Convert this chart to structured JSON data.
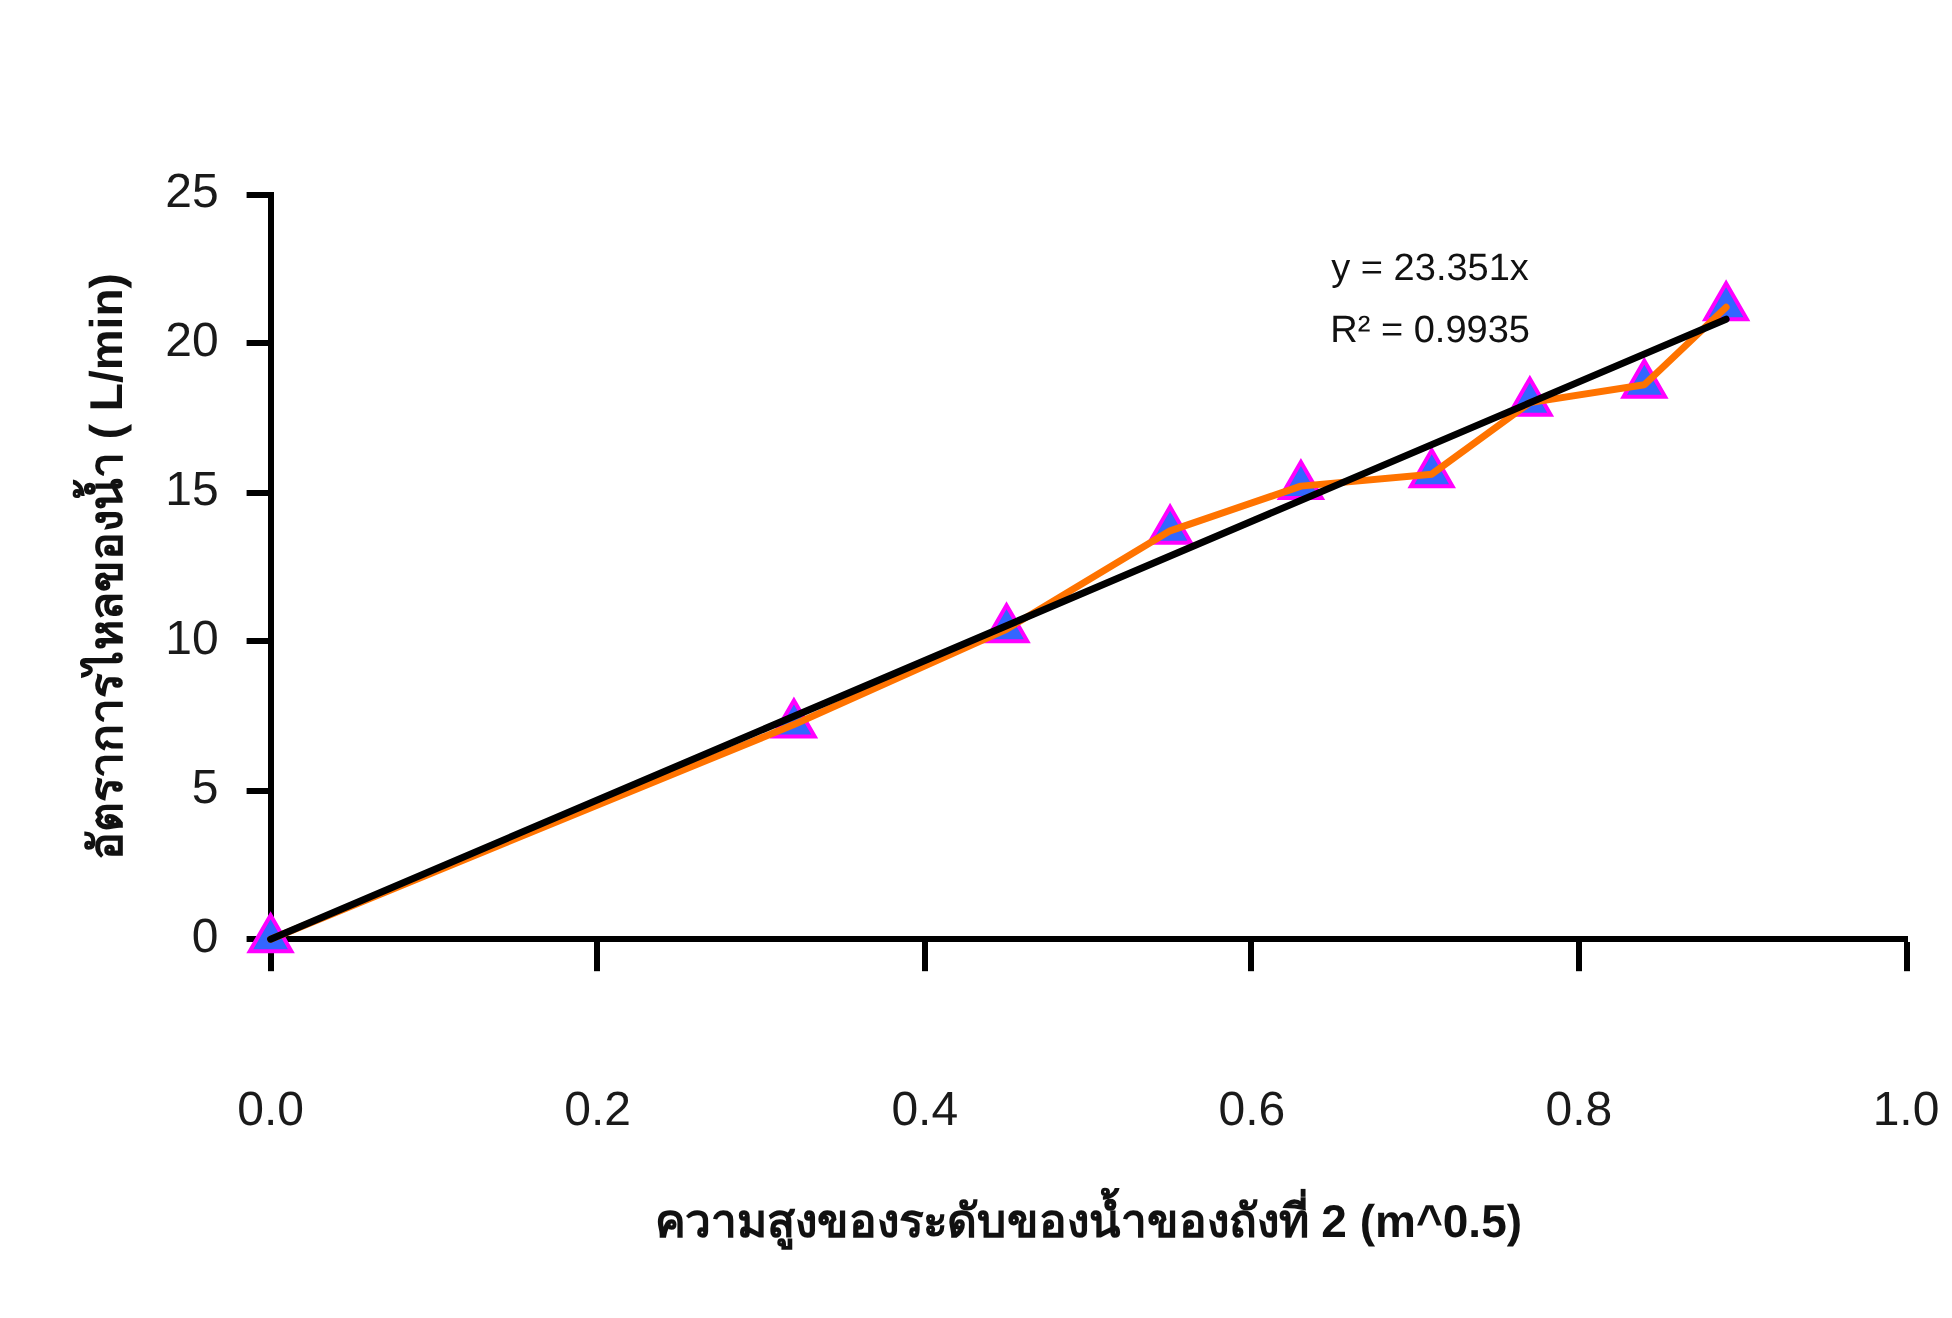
{
  "chart_data": {
    "type": "line",
    "xlabel": "ความสูงของระดับของน้ำของถังที่ 2 (m^0.5)",
    "ylabel": "อัตราการไหลของน้ำ ( L/min)",
    "annotations": [
      "y = 23.351x",
      "R² = 0.9935"
    ],
    "x": [
      0,
      0.32,
      0.45,
      0.55,
      0.63,
      0.71,
      0.77,
      0.84,
      0.89
    ],
    "series": [
      {
        "color": "#ff7300",
        "colors": [
          "#3366ff",
          "#3366ff",
          "#3366ff",
          "#3366ff",
          "#3366ff",
          "#3366ff",
          "#3366ff",
          "#3366ff",
          "#3366ff"
        ],
        "values": [
          0,
          7.2,
          10.4,
          13.7,
          15.2,
          15.6,
          18.0,
          18.6,
          21.2
        ]
      },
      {
        "type": "line",
        "x": [
          0,
          0.89
        ],
        "color": "#000000",
        "marker": "none",
        "values": [
          0,
          20.8
        ]
      }
    ],
    "xlim": [
      0,
      1
    ],
    "xticks": [
      {
        "value": 0,
        "label": "0.0"
      },
      0.2,
      0.4,
      0.6,
      0.8,
      {
        "value": 1,
        "label": "1.0"
      }
    ],
    "ylim": [
      0,
      25
    ],
    "yticks": [
      0,
      5,
      10,
      15,
      20,
      25
    ],
    "grid": false,
    "legend": false,
    "marker": "triangle",
    "line_style": "solid"
  }
}
